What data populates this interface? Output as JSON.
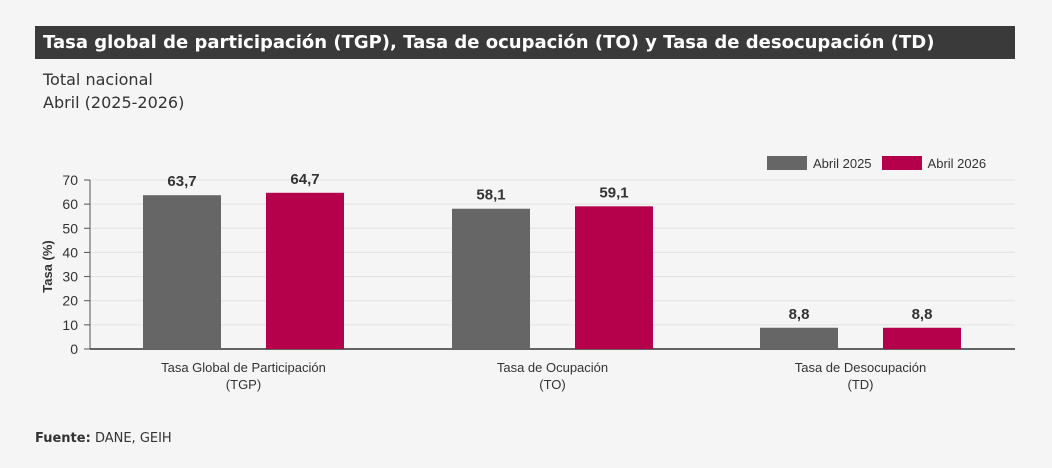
{
  "header": {
    "title": "Tasa global de participación (TGP), Tasa de ocupación (TO) y Tasa de desocupación (TD)",
    "subtitle_line1": "Total nacional",
    "subtitle_line2": "Abril (2025-2026)"
  },
  "footer": {
    "source_label": "Fuente:",
    "source_text": "DANE, GEIH"
  },
  "chart_data": {
    "type": "bar",
    "categories": [
      [
        "Tasa Global de Participación",
        "(TGP)"
      ],
      [
        "Tasa de Ocupación",
        "(TO)"
      ],
      [
        "Tasa de Desocupación",
        "(TD)"
      ]
    ],
    "series": [
      {
        "name": "Abril  2025",
        "color": "#666666",
        "values": [
          63.7,
          58.1,
          8.8
        ],
        "labels": [
          "63,7",
          "58,1",
          "8,8"
        ]
      },
      {
        "name": "Abril  2026",
        "color": "#b5004b",
        "values": [
          64.7,
          59.1,
          8.8
        ],
        "labels": [
          "64,7",
          "59,1",
          "8,8"
        ]
      }
    ],
    "ylabel": "Tasa (%)",
    "ylim": [
      0,
      70
    ],
    "yticks": [
      0,
      10,
      20,
      30,
      40,
      50,
      60,
      70
    ],
    "grid": true,
    "legend_position": "top-right"
  }
}
